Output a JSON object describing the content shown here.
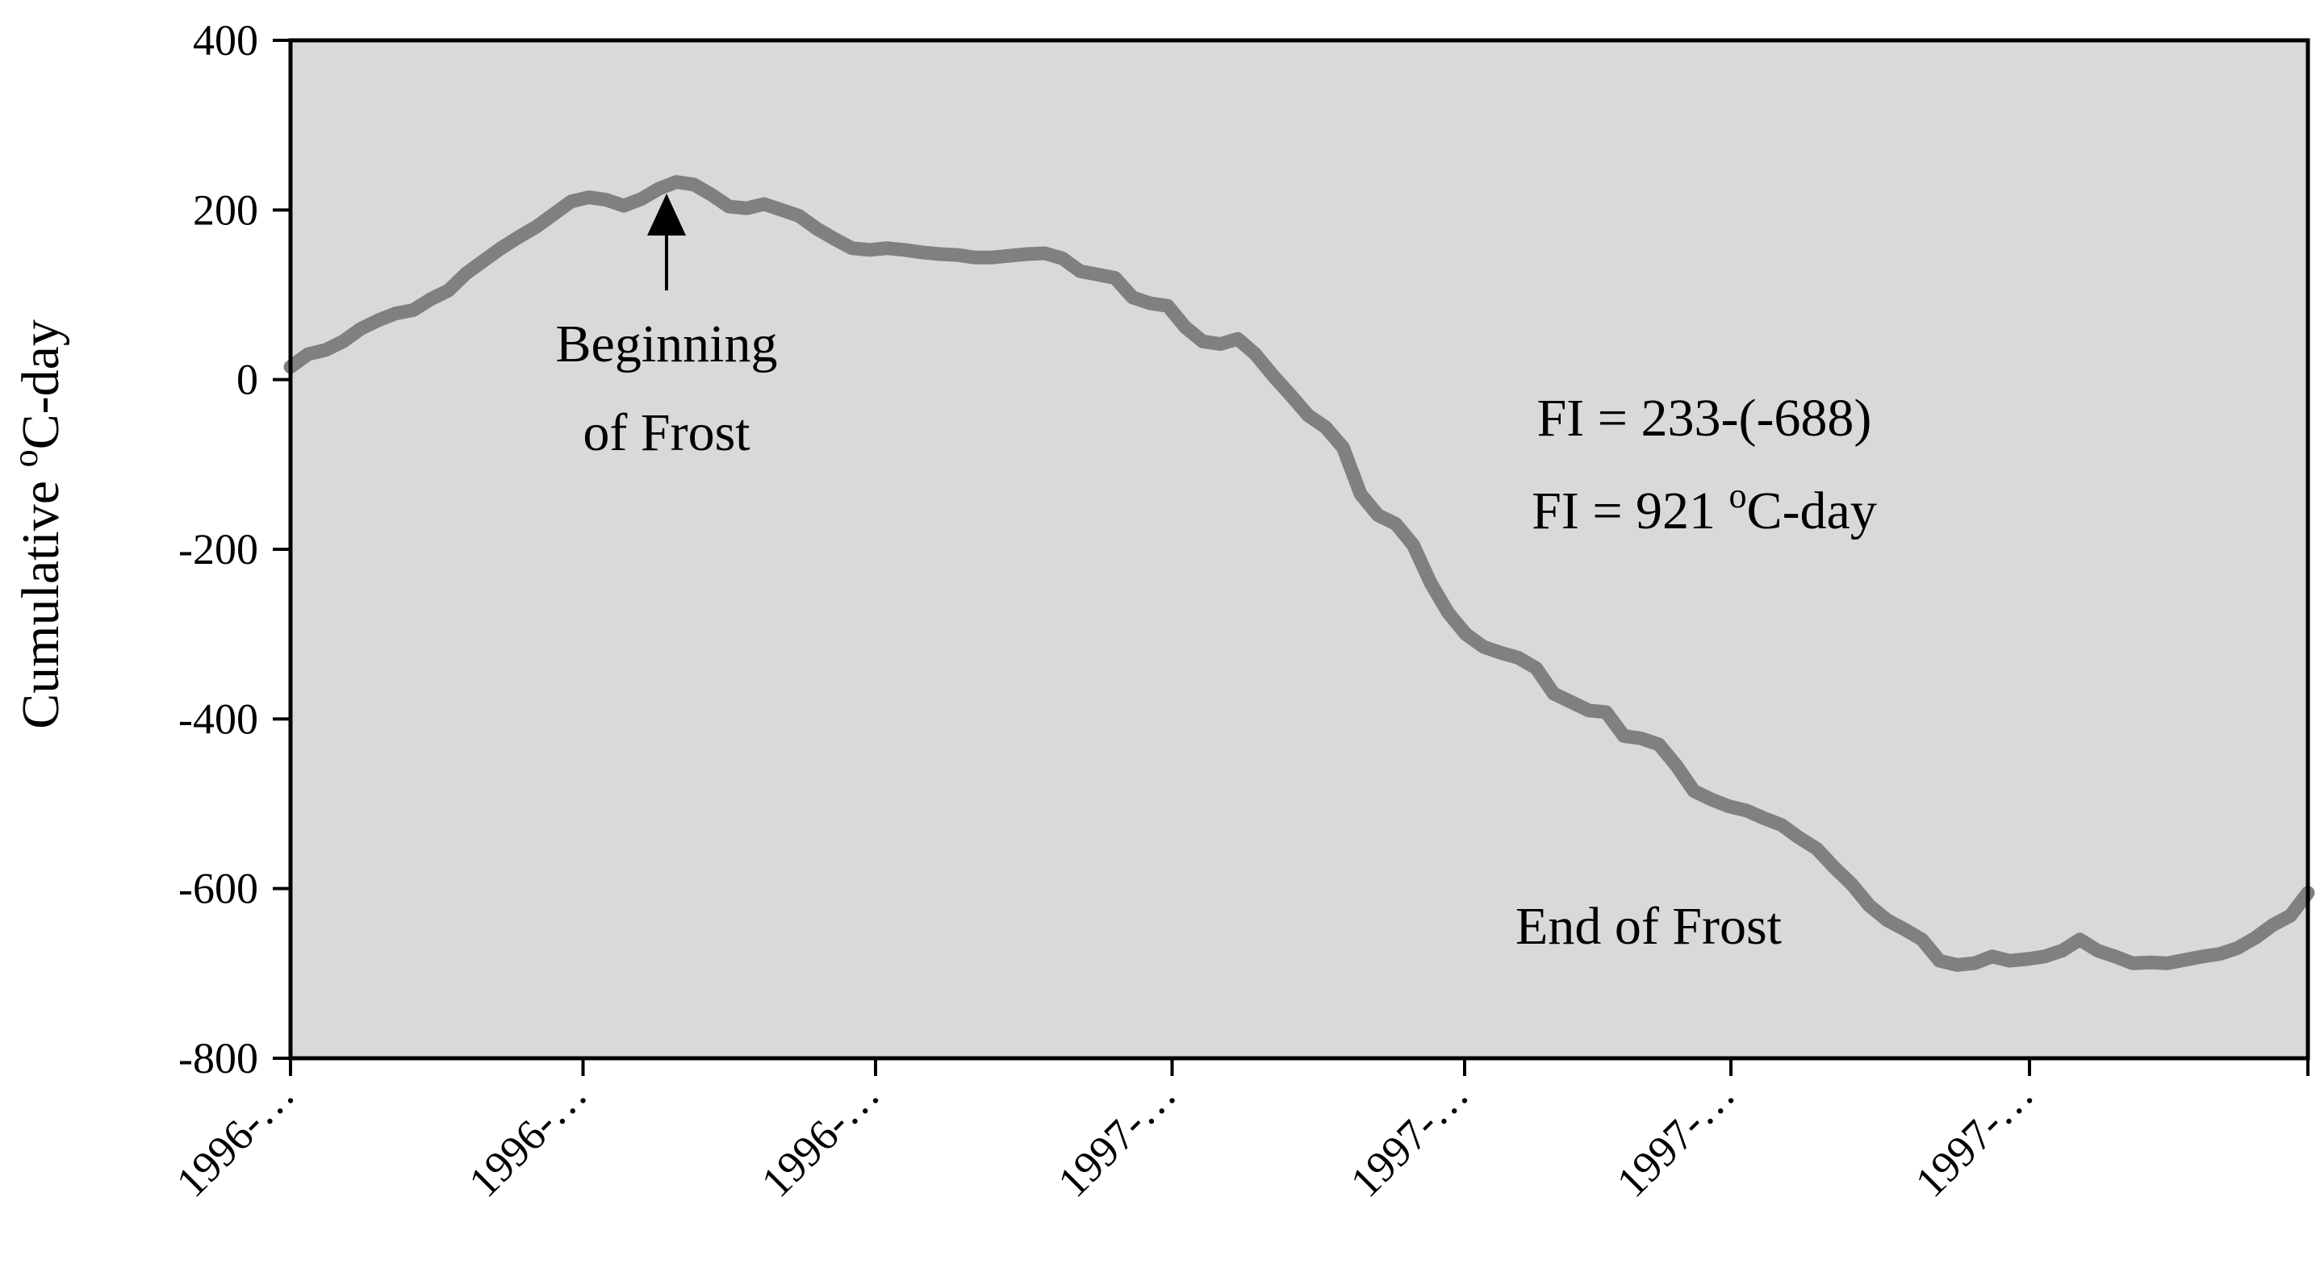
{
  "chart_data": {
    "type": "line",
    "title": "",
    "xlabel": "",
    "ylabel": "Cumulative",
    "ylabel_unit_sup": "o",
    "ylabel_unit": "C-day",
    "ylim": [
      -800,
      400
    ],
    "yticks": [
      400,
      200,
      0,
      -200,
      -400,
      -600,
      -800
    ],
    "xtick_labels": [
      "1996-…",
      "1996-…",
      "1996-…",
      "1997-…",
      "1997-…",
      "1997-…",
      "1997-…"
    ],
    "grid": false,
    "legend": "none",
    "colors": {
      "plot_background": "#d9d9d9",
      "line": "#808080",
      "axis": "#000000"
    },
    "series": [
      {
        "x": [
          0,
          3,
          6,
          9,
          12,
          15,
          18,
          21,
          24,
          27,
          30,
          33,
          36,
          39,
          42,
          45,
          48,
          51,
          54,
          57,
          60,
          63,
          66,
          69,
          72,
          75,
          78,
          81,
          84,
          87,
          90,
          93,
          96,
          99,
          102,
          105,
          108,
          111,
          114,
          117,
          120,
          123,
          126,
          129,
          132,
          135,
          138,
          141,
          144,
          147,
          150,
          153,
          156,
          159,
          162,
          165,
          168,
          171,
          174,
          177,
          180,
          183,
          186,
          189,
          192,
          195,
          198,
          201,
          204,
          207,
          210,
          213,
          216,
          219,
          222,
          225,
          228,
          231,
          234,
          237,
          240,
          243,
          246,
          249,
          252,
          255,
          258,
          261,
          264,
          267,
          270,
          273,
          276,
          279,
          282,
          285,
          288,
          291,
          294,
          297,
          300,
          303,
          306,
          309,
          312,
          315,
          318,
          321,
          324,
          327,
          330,
          333,
          336,
          339,
          342,
          345
        ],
        "values": [
          15,
          30,
          35,
          45,
          60,
          70,
          78,
          82,
          95,
          105,
          125,
          140,
          155,
          168,
          180,
          195,
          210,
          215,
          212,
          205,
          213,
          225,
          233,
          230,
          218,
          204,
          202,
          207,
          200,
          193,
          178,
          166,
          155,
          153,
          155,
          153,
          150,
          148,
          147,
          144,
          144,
          146,
          148,
          149,
          143,
          128,
          124,
          120,
          97,
          90,
          87,
          62,
          45,
          42,
          48,
          30,
          5,
          -18,
          -42,
          -56,
          -80,
          -135,
          -160,
          -170,
          -195,
          -240,
          -275,
          -300,
          -315,
          -322,
          -328,
          -340,
          -370,
          -380,
          -390,
          -392,
          -420,
          -423,
          -430,
          -455,
          -485,
          -495,
          -503,
          -508,
          -517,
          -525,
          -540,
          -553,
          -575,
          -595,
          -620,
          -637,
          -648,
          -660,
          -685,
          -690,
          -688,
          -680,
          -685,
          -683,
          -680,
          -673,
          -660,
          -673,
          -680,
          -688,
          -687,
          -688,
          -684,
          -680,
          -677,
          -670,
          -658,
          -643,
          -632,
          -605
        ],
        "start_label": "Beginning of Frost",
        "end_label": "End of Frost",
        "start_value": 233,
        "end_value": -688
      }
    ],
    "annotations": {
      "beginning_line1": "Beginning",
      "beginning_line2": "of Frost",
      "end_label": "End of Frost",
      "fi_line1": "FI = 233-(-688)",
      "fi_line2_prefix": "FI = 921 ",
      "fi_line2_sup": "o",
      "fi_line2_suffix": "C-day"
    }
  }
}
